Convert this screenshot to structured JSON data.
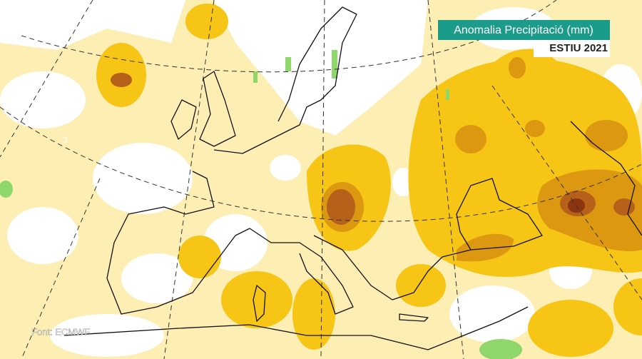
{
  "header": {
    "title": "Anomalia Precipitació (mm)",
    "subtitle": "ESTIU 2021"
  },
  "map": {
    "contour_label": "3"
  },
  "footer": {
    "source": "Font: ECMWF"
  }
}
